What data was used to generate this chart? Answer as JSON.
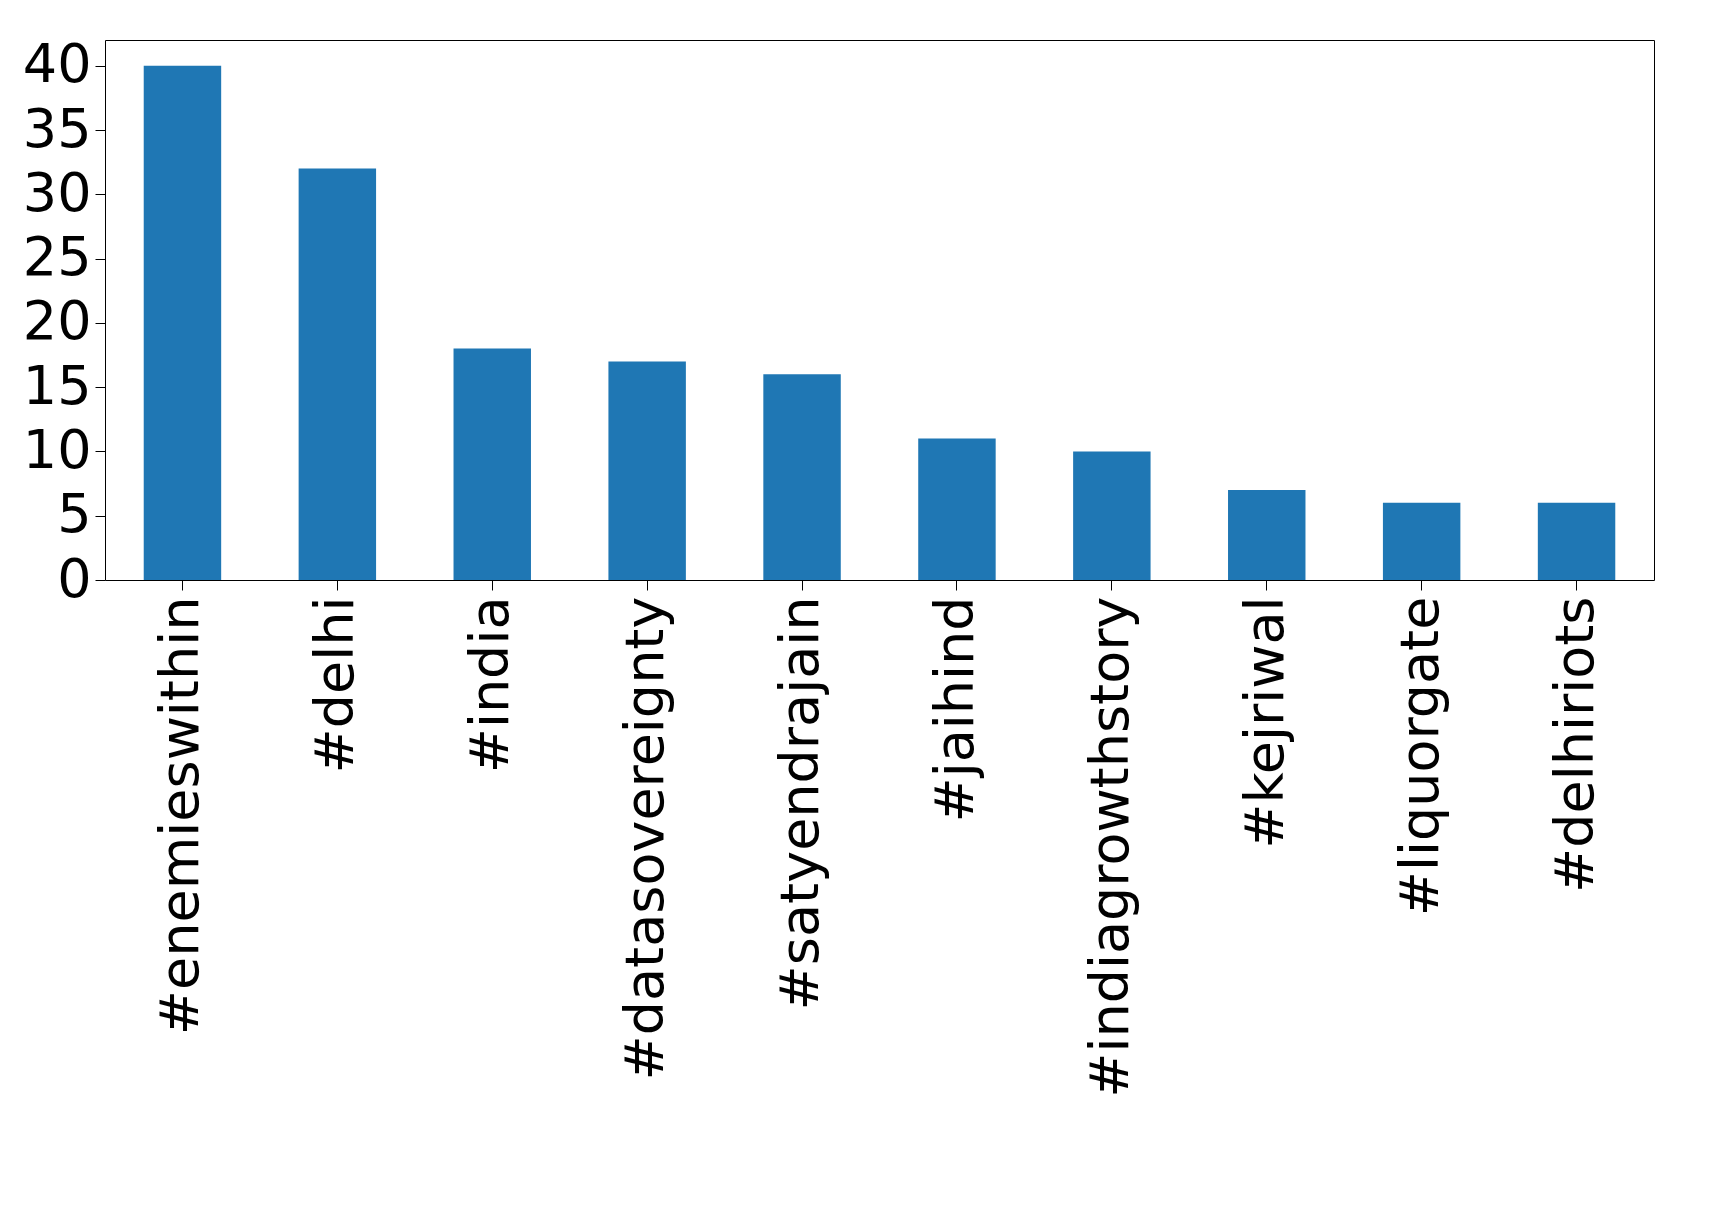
{
  "chart_data": {
    "type": "bar",
    "categories": [
      "#enemieswithin",
      "#delhi",
      "#india",
      "#datasovereignty",
      "#satyendrajain",
      "#jaihind",
      "#indiagrowthstory",
      "#kejriwal",
      "#liquorgate",
      "#delhiriots"
    ],
    "values": [
      40,
      32,
      18,
      17,
      16,
      11,
      10,
      7,
      6,
      6
    ],
    "color": "#1f77b4",
    "ylim": [
      0,
      42
    ],
    "yticks": [
      0,
      5,
      10,
      15,
      20,
      25,
      30,
      35,
      40
    ],
    "grid": false
  }
}
